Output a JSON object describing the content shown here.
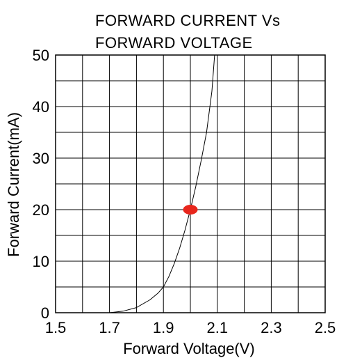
{
  "chart_data": {
    "type": "line",
    "title_lines": [
      "FORWARD CURRENT Vs",
      "FORWARD VOLTAGE"
    ],
    "xlabel": "Forward Voltage(V)",
    "ylabel": "Forward Current(mA)",
    "xlim": [
      1.5,
      2.5
    ],
    "ylim": [
      0,
      50
    ],
    "x_tick_labels": [
      "1.5",
      "1.7",
      "1.9",
      "2.1",
      "2.3",
      "2.5"
    ],
    "y_tick_labels": [
      "0",
      "10",
      "20",
      "30",
      "40",
      "50"
    ],
    "grid": true,
    "series": [
      {
        "color": "#000000",
        "x": [
          1.7,
          1.75,
          1.8,
          1.85,
          1.88,
          1.9,
          1.92,
          1.94,
          1.96,
          1.98,
          2.0,
          2.02,
          2.04,
          2.06,
          2.08,
          2.09
        ],
        "y": [
          0,
          0.3,
          1.0,
          2.5,
          3.8,
          5.0,
          7.0,
          9.5,
          12.5,
          16.0,
          20.0,
          24.5,
          29.5,
          35.0,
          43.0,
          50.0
        ]
      }
    ],
    "marker": {
      "x": 2.0,
      "y": 20,
      "color": "#e8261c"
    }
  }
}
